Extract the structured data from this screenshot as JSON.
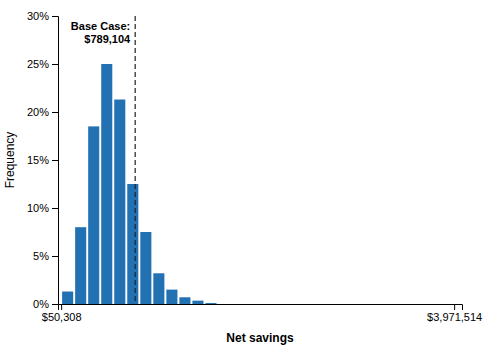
{
  "chart_data": {
    "type": "histogram",
    "bins": [
      50308,
      180308,
      310308,
      440308,
      570308,
      700308,
      830308,
      960308,
      1090308,
      1220308,
      1350308,
      1480308,
      1610308
    ],
    "values": [
      1.3,
      8.0,
      18.5,
      25.0,
      21.3,
      12.5,
      7.5,
      3.2,
      1.5,
      0.7,
      0.35,
      0.1
    ],
    "color": "#2271B3",
    "xlabel": "Net savings",
    "ylabel": "Frequency",
    "xlim": [
      18938.352,
      4049938.12
    ],
    "xticks": [
      {
        "value": 50308,
        "label": "$50,308"
      },
      {
        "value": 3971514,
        "label": "$3,971,514"
      }
    ],
    "ylim": [
      0,
      30
    ],
    "yticks": [
      {
        "value": 0,
        "label": "0%"
      },
      {
        "value": 5,
        "label": "5%"
      },
      {
        "value": 10,
        "label": "10%"
      },
      {
        "value": 15,
        "label": "15%"
      },
      {
        "value": 20,
        "label": "20%"
      },
      {
        "value": 25,
        "label": "25%"
      },
      {
        "value": 30,
        "label": "30%"
      }
    ],
    "annotations": [
      {
        "text": "Base Case:\n$789,104",
        "x": 789104,
        "line_style": "dashed",
        "color": "#222222"
      }
    ],
    "grid": false
  }
}
